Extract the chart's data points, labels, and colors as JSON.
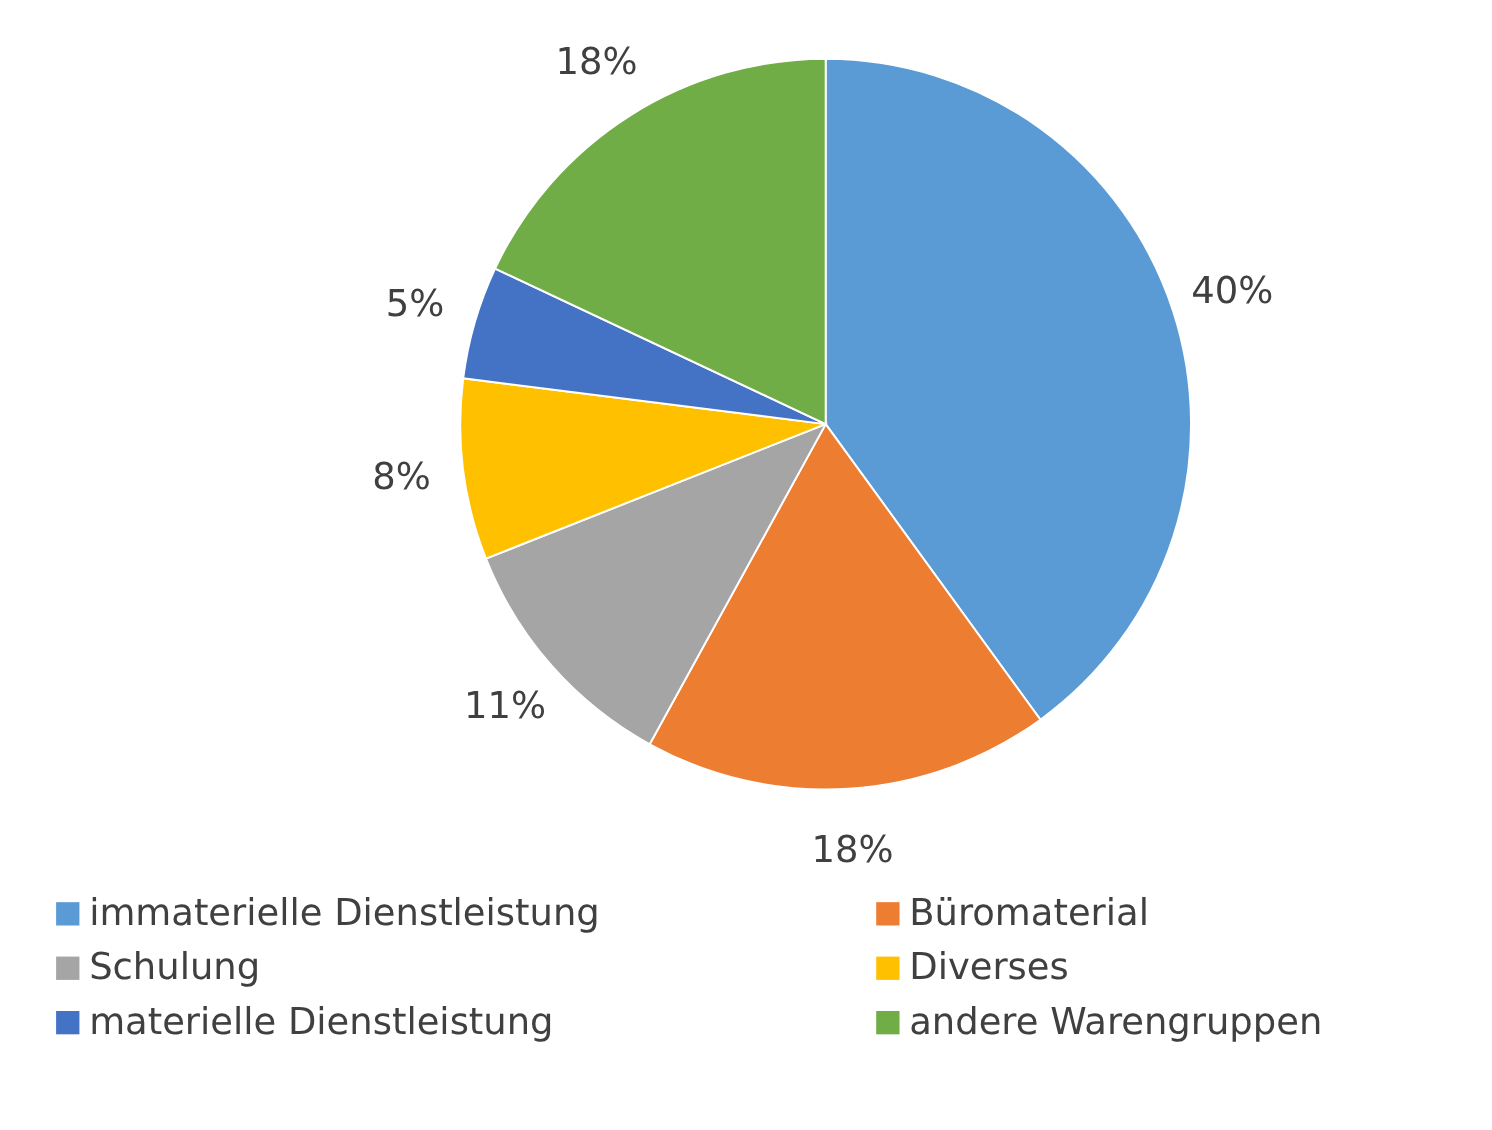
{
  "chart_data": {
    "type": "pie",
    "categories": [
      "immaterielle Dienstleistung",
      "Büromaterial",
      "Schulung",
      "Diverses",
      "materielle Dienstleistung",
      "andere Warengruppen"
    ],
    "values": [
      40,
      18,
      11,
      8,
      5,
      18
    ],
    "colors": [
      "#5b9bd5",
      "#ed7d31",
      "#a5a5a5",
      "#ffc000",
      "#4472c4",
      "#70ad47"
    ],
    "value_labels": [
      "40%",
      "18%",
      "11%",
      "8%",
      "5%",
      "18%"
    ],
    "legend": "bottom"
  }
}
